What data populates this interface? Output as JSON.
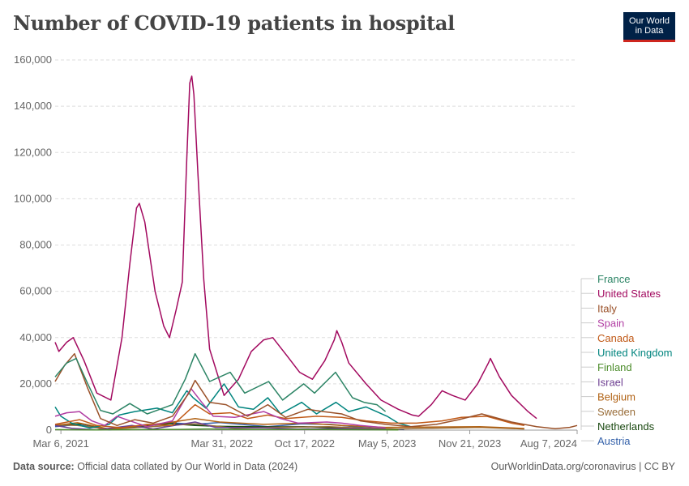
{
  "header": {
    "title": "Number of COVID-19 patients in hospital",
    "logo_line1": "Our World",
    "logo_line2": "in Data"
  },
  "footer": {
    "source_label": "Data source:",
    "source_text": "Official data collated by Our World in Data (2024)",
    "url_text": "OurWorldinData.org/coronavirus | CC BY"
  },
  "chart_data": {
    "type": "line",
    "title": "Number of COVID-19 patients in hospital",
    "xlabel": "",
    "ylabel": "",
    "ylim": [
      0,
      160000
    ],
    "y_ticks": [
      0,
      20000,
      40000,
      60000,
      80000,
      100000,
      120000,
      140000,
      160000
    ],
    "y_tick_labels": [
      "0",
      "20,000",
      "40,000",
      "60,000",
      "80,000",
      "100,000",
      "120,000",
      "140,000",
      "160,000"
    ],
    "x_range": [
      "2021-02-20",
      "2024-08-07"
    ],
    "x_ticks": [
      "2021-03-06",
      "2022-03-31",
      "2022-10-17",
      "2023-05-05",
      "2023-11-21",
      "2024-08-07"
    ],
    "x_tick_labels": [
      "Mar 6, 2021",
      "Mar 31, 2022",
      "Oct 17, 2022",
      "May 5, 2023",
      "Nov 21, 2023",
      "Aug 7, 2024"
    ],
    "grid": "horizontal dashed",
    "legend_position": "right",
    "series": [
      {
        "name": "France",
        "color": "#2c8465",
        "points": [
          [
            "2021-02-20",
            23000
          ],
          [
            "2021-03-20",
            29000
          ],
          [
            "2021-04-12",
            31000
          ],
          [
            "2021-05-10",
            20000
          ],
          [
            "2021-06-10",
            8500
          ],
          [
            "2021-07-10",
            7000
          ],
          [
            "2021-08-20",
            11500
          ],
          [
            "2021-10-01",
            7000
          ],
          [
            "2021-12-01",
            11000
          ],
          [
            "2022-01-01",
            22000
          ],
          [
            "2022-01-25",
            33000
          ],
          [
            "2022-03-01",
            21000
          ],
          [
            "2022-04-20",
            25000
          ],
          [
            "2022-05-25",
            16000
          ],
          [
            "2022-07-22",
            21000
          ],
          [
            "2022-08-25",
            13000
          ],
          [
            "2022-10-15",
            20000
          ],
          [
            "2022-11-10",
            16000
          ],
          [
            "2022-12-31",
            25000
          ],
          [
            "2023-02-10",
            14000
          ],
          [
            "2023-03-10",
            12000
          ],
          [
            "2023-04-10",
            11000
          ],
          [
            "2023-05-01",
            8000
          ]
        ]
      },
      {
        "name": "United States",
        "color": "#a2095f",
        "points": [
          [
            "2021-02-20",
            38000
          ],
          [
            "2021-03-01",
            34000
          ],
          [
            "2021-03-20",
            38000
          ],
          [
            "2021-04-05",
            40000
          ],
          [
            "2021-05-01",
            30000
          ],
          [
            "2021-06-01",
            16000
          ],
          [
            "2021-07-05",
            13000
          ],
          [
            "2021-08-01",
            40000
          ],
          [
            "2021-08-20",
            72000
          ],
          [
            "2021-09-05",
            96000
          ],
          [
            "2021-09-12",
            98000
          ],
          [
            "2021-09-25",
            90000
          ],
          [
            "2021-10-20",
            60000
          ],
          [
            "2021-11-10",
            45000
          ],
          [
            "2021-11-24",
            40000
          ],
          [
            "2021-12-10",
            52000
          ],
          [
            "2021-12-25",
            64000
          ],
          [
            "2022-01-05",
            118000
          ],
          [
            "2022-01-12",
            150000
          ],
          [
            "2022-01-17",
            153000
          ],
          [
            "2022-01-22",
            145000
          ],
          [
            "2022-02-01",
            110000
          ],
          [
            "2022-02-15",
            65000
          ],
          [
            "2022-03-01",
            35000
          ],
          [
            "2022-04-05",
            15000
          ],
          [
            "2022-05-10",
            22000
          ],
          [
            "2022-06-10",
            34000
          ],
          [
            "2022-07-10",
            39000
          ],
          [
            "2022-08-01",
            40000
          ],
          [
            "2022-09-05",
            32000
          ],
          [
            "2022-10-05",
            25000
          ],
          [
            "2022-11-05",
            22000
          ],
          [
            "2022-12-05",
            30000
          ],
          [
            "2022-12-28",
            39000
          ],
          [
            "2023-01-03",
            43000
          ],
          [
            "2023-01-15",
            38000
          ],
          [
            "2023-02-01",
            29000
          ],
          [
            "2023-03-15",
            20000
          ],
          [
            "2023-04-20",
            13000
          ],
          [
            "2023-06-01",
            9000
          ],
          [
            "2023-07-05",
            6500
          ],
          [
            "2023-07-20",
            6000
          ],
          [
            "2023-08-20",
            11000
          ],
          [
            "2023-09-15",
            17000
          ],
          [
            "2023-10-10",
            15000
          ],
          [
            "2023-11-10",
            13000
          ],
          [
            "2023-12-10",
            20000
          ],
          [
            "2024-01-05",
            29000
          ],
          [
            "2024-01-10",
            31000
          ],
          [
            "2024-02-01",
            23000
          ],
          [
            "2024-03-01",
            15000
          ],
          [
            "2024-04-10",
            8000
          ],
          [
            "2024-05-01",
            5000
          ]
        ]
      },
      {
        "name": "Italy",
        "color": "#9a5129",
        "points": [
          [
            "2021-02-20",
            21000
          ],
          [
            "2021-03-15",
            28000
          ],
          [
            "2021-04-08",
            33000
          ],
          [
            "2021-05-10",
            18000
          ],
          [
            "2021-06-10",
            5000
          ],
          [
            "2021-07-20",
            2000
          ],
          [
            "2021-09-01",
            4500
          ],
          [
            "2021-10-15",
            3000
          ],
          [
            "2021-12-01",
            6000
          ],
          [
            "2022-01-10",
            16000
          ],
          [
            "2022-01-25",
            21500
          ],
          [
            "2022-03-01",
            12000
          ],
          [
            "2022-04-10",
            11000
          ],
          [
            "2022-06-01",
            6000
          ],
          [
            "2022-07-20",
            11000
          ],
          [
            "2022-09-01",
            5500
          ],
          [
            "2022-10-25",
            9000
          ],
          [
            "2022-12-01",
            8000
          ],
          [
            "2023-01-15",
            7000
          ],
          [
            "2023-03-01",
            4000
          ],
          [
            "2023-05-01",
            2500
          ],
          [
            "2023-07-01",
            1500
          ],
          [
            "2023-09-01",
            2500
          ],
          [
            "2023-10-25",
            4500
          ],
          [
            "2023-12-20",
            7000
          ],
          [
            "2024-01-10",
            6000
          ],
          [
            "2024-03-01",
            3500
          ],
          [
            "2024-05-01",
            1500
          ],
          [
            "2024-06-15",
            600
          ],
          [
            "2024-07-20",
            1200
          ],
          [
            "2024-08-07",
            2000
          ]
        ]
      },
      {
        "name": "Spain",
        "color": "#b13da3",
        "points": [
          [
            "2021-02-20",
            6000
          ],
          [
            "2021-03-20",
            7500
          ],
          [
            "2021-04-20",
            8000
          ],
          [
            "2021-05-20",
            4000
          ],
          [
            "2021-06-20",
            2000
          ],
          [
            "2021-07-20",
            6000
          ],
          [
            "2021-08-20",
            4000
          ],
          [
            "2021-10-01",
            1500
          ],
          [
            "2021-12-01",
            4000
          ],
          [
            "2022-01-15",
            18000
          ],
          [
            "2022-02-10",
            12000
          ],
          [
            "2022-03-10",
            6000
          ],
          [
            "2022-05-01",
            5500
          ],
          [
            "2022-07-10",
            8000
          ],
          [
            "2022-08-20",
            5000
          ],
          [
            "2022-10-01",
            3000
          ],
          [
            "2022-12-10",
            3500
          ],
          [
            "2023-01-15",
            3000
          ],
          [
            "2023-03-01",
            2000
          ],
          [
            "2023-05-01",
            1000
          ]
        ]
      },
      {
        "name": "Canada",
        "color": "#c05917",
        "points": [
          [
            "2021-02-20",
            2500
          ],
          [
            "2021-04-20",
            4500
          ],
          [
            "2021-06-01",
            2000
          ],
          [
            "2021-08-01",
            1000
          ],
          [
            "2021-10-01",
            2500
          ],
          [
            "2021-12-01",
            2000
          ],
          [
            "2022-01-25",
            11000
          ],
          [
            "2022-03-01",
            7000
          ],
          [
            "2022-04-20",
            7500
          ],
          [
            "2022-06-01",
            5000
          ],
          [
            "2022-07-20",
            6500
          ],
          [
            "2022-09-01",
            5000
          ],
          [
            "2022-11-15",
            6000
          ],
          [
            "2023-01-15",
            5500
          ],
          [
            "2023-03-15",
            4000
          ],
          [
            "2023-05-15",
            3000
          ],
          [
            "2023-07-15",
            3000
          ],
          [
            "2023-09-15",
            4000
          ],
          [
            "2023-11-01",
            5500
          ],
          [
            "2024-01-01",
            6000
          ],
          [
            "2024-03-01",
            3000
          ],
          [
            "2024-04-01",
            2000
          ]
        ]
      },
      {
        "name": "United Kingdom",
        "color": "#00847e",
        "points": [
          [
            "2021-02-20",
            10000
          ],
          [
            "2021-03-06",
            6000
          ],
          [
            "2021-04-01",
            3000
          ],
          [
            "2021-05-15",
            900
          ],
          [
            "2021-07-01",
            2500
          ],
          [
            "2021-07-25",
            6500
          ],
          [
            "2021-09-01",
            8000
          ],
          [
            "2021-10-25",
            9500
          ],
          [
            "2021-12-01",
            7500
          ],
          [
            "2022-01-05",
            17000
          ],
          [
            "2022-01-20",
            14000
          ],
          [
            "2022-02-20",
            9500
          ],
          [
            "2022-04-05",
            20000
          ],
          [
            "2022-05-10",
            10000
          ],
          [
            "2022-06-15",
            9000
          ],
          [
            "2022-07-20",
            14000
          ],
          [
            "2022-08-20",
            7000
          ],
          [
            "2022-10-10",
            12000
          ],
          [
            "2022-11-15",
            7000
          ],
          [
            "2023-01-01",
            12000
          ],
          [
            "2023-02-01",
            8000
          ],
          [
            "2023-03-15",
            10000
          ],
          [
            "2023-05-05",
            6000
          ],
          [
            "2023-06-01",
            3000
          ],
          [
            "2023-07-01",
            1500
          ]
        ]
      },
      {
        "name": "Finland",
        "color": "#4c8c2b",
        "points": [
          [
            "2021-02-20",
            200
          ],
          [
            "2021-06-01",
            100
          ],
          [
            "2021-12-20",
            300
          ],
          [
            "2022-03-01",
            500
          ],
          [
            "2022-06-01",
            300
          ],
          [
            "2022-10-01",
            300
          ],
          [
            "2023-01-15",
            200
          ],
          [
            "2023-06-01",
            100
          ]
        ]
      },
      {
        "name": "Israel",
        "color": "#6d3e91",
        "points": [
          [
            "2021-02-20",
            2000
          ],
          [
            "2021-04-01",
            800
          ],
          [
            "2021-06-01",
            100
          ],
          [
            "2021-08-25",
            2000
          ],
          [
            "2021-10-15",
            500
          ],
          [
            "2022-01-25",
            3500
          ],
          [
            "2022-03-15",
            1200
          ],
          [
            "2022-07-10",
            1000
          ],
          [
            "2022-10-01",
            500
          ],
          [
            "2023-01-10",
            700
          ],
          [
            "2023-05-01",
            300
          ]
        ]
      },
      {
        "name": "Belgium",
        "color": "#b16214",
        "points": [
          [
            "2021-02-20",
            2000
          ],
          [
            "2021-04-15",
            3200
          ],
          [
            "2021-07-01",
            500
          ],
          [
            "2021-11-25",
            3300
          ],
          [
            "2022-01-25",
            5000
          ],
          [
            "2022-03-25",
            3500
          ],
          [
            "2022-07-10",
            2500
          ],
          [
            "2022-10-20",
            3000
          ],
          [
            "2023-01-15",
            2000
          ],
          [
            "2023-05-01",
            1200
          ],
          [
            "2023-12-15",
            1500
          ],
          [
            "2024-04-01",
            700
          ]
        ]
      },
      {
        "name": "Sweden",
        "color": "#996d39",
        "points": [
          [
            "2021-02-20",
            2300
          ],
          [
            "2021-04-15",
            2000
          ],
          [
            "2021-07-01",
            300
          ],
          [
            "2022-01-25",
            2700
          ],
          [
            "2022-05-01",
            800
          ],
          [
            "2022-08-01",
            1200
          ],
          [
            "2022-12-15",
            1500
          ],
          [
            "2023-03-01",
            900
          ],
          [
            "2023-06-01",
            500
          ],
          [
            "2023-12-15",
            1200
          ],
          [
            "2024-04-01",
            500
          ]
        ]
      },
      {
        "name": "Netherlands",
        "color": "#18470f",
        "points": [
          [
            "2021-02-20",
            2000
          ],
          [
            "2021-04-25",
            2700
          ],
          [
            "2021-07-01",
            400
          ],
          [
            "2021-11-25",
            2800
          ],
          [
            "2022-01-25",
            2000
          ],
          [
            "2022-04-01",
            1600
          ],
          [
            "2022-07-15",
            1400
          ],
          [
            "2022-10-15",
            1500
          ],
          [
            "2023-01-15",
            900
          ],
          [
            "2023-05-01",
            400
          ]
        ]
      },
      {
        "name": "Austria",
        "color": "#3360a9",
        "points": [
          [
            "2021-02-20",
            1500
          ],
          [
            "2021-04-15",
            2400
          ],
          [
            "2021-07-01",
            150
          ],
          [
            "2021-11-25",
            3200
          ],
          [
            "2022-01-25",
            2500
          ],
          [
            "2022-03-25",
            3300
          ],
          [
            "2022-07-20",
            1500
          ],
          [
            "2022-10-10",
            2700
          ],
          [
            "2022-12-20",
            2500
          ],
          [
            "2023-03-01",
            1200
          ],
          [
            "2023-06-15",
            200
          ]
        ]
      }
    ]
  }
}
